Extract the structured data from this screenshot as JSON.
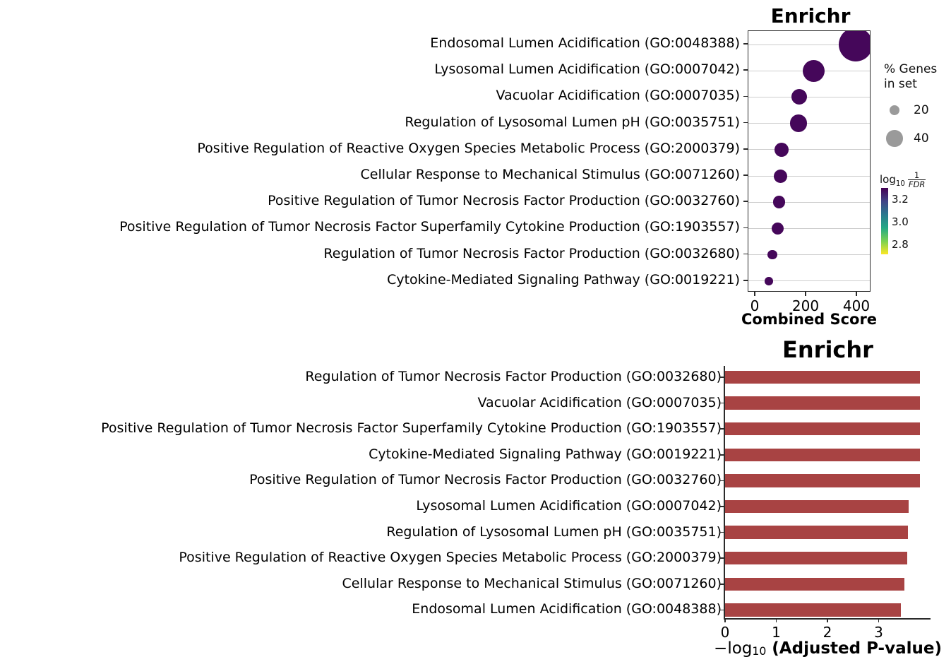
{
  "chart_data": [
    {
      "type": "scatter",
      "title": "Enrichr",
      "xlabel": "Combined Score",
      "x_ticks": [
        0,
        200,
        400
      ],
      "xlim": [
        -28,
        455
      ],
      "grid": "horizontal",
      "legend_position": "right",
      "point_color": "#45075A",
      "categories": [
        "Endosomal Lumen Acidification (GO:0048388)",
        "Lysosomal Lumen Acidification (GO:0007042)",
        "Vacuolar Acidification (GO:0007035)",
        "Regulation of Lysosomal Lumen pH (GO:0035751)",
        "Positive Regulation of Reactive Oxygen Species Metabolic Process (GO:2000379)",
        "Cellular Response to Mechanical Stimulus (GO:0071260)",
        "Positive Regulation of Tumor Necrosis Factor Production (GO:0032760)",
        "Positive Regulation of Tumor Necrosis Factor Superfamily Cytokine Production (GO:1903557)",
        "Regulation of Tumor Necrosis Factor Production (GO:0032680)",
        "Cytokine-Mediated Signaling Pathway (GO:0019221)"
      ],
      "combined_scores": [
        395,
        230,
        172,
        170,
        104,
        99,
        93,
        87,
        67,
        52
      ],
      "bubble_radius_px": [
        24,
        15.7,
        11,
        12.2,
        10,
        9.5,
        8.8,
        8.7,
        6.7,
        5.8
      ],
      "size_legend": {
        "title_line1": "% Genes",
        "title_line2": "in set",
        "swatch_color": "#9A9A9A",
        "entries": [
          {
            "label": "20",
            "radius_px": 7.3
          },
          {
            "label": "40",
            "radius_px": 11.7
          }
        ]
      },
      "color_legend": {
        "label_prefix": "log",
        "label_sub": "10",
        "frac_numerator": "1",
        "frac_denominator": "FDR",
        "tick_labels": [
          "3.2",
          "3.0",
          "2.8"
        ],
        "range_top": 3.3,
        "range_bottom": 2.71,
        "gradient": [
          "#440154",
          "#414487",
          "#2A788E",
          "#22A884",
          "#7AD151",
          "#FDE725"
        ]
      }
    },
    {
      "type": "bar",
      "title": "Enrichr",
      "xlabel_prefix": "−log",
      "xlabel_sub": "10",
      "xlabel_bold": " (Adjusted P-value)",
      "x_ticks": [
        0,
        1,
        2,
        3
      ],
      "xlim": [
        0,
        4.0
      ],
      "grid": "off",
      "bar_color": "#A84343",
      "categories": [
        "Regulation of Tumor Necrosis Factor Production (GO:0032680)",
        "Vacuolar Acidification (GO:0007035)",
        "Positive Regulation of Tumor Necrosis Factor Superfamily Cytokine Production (GO:1903557)",
        "Cytokine-Mediated Signaling Pathway (GO:0019221)",
        "Positive Regulation of Tumor Necrosis Factor Production (GO:0032760)",
        "Lysosomal Lumen Acidification (GO:0007042)",
        "Regulation of Lysosomal Lumen pH (GO:0035751)",
        "Positive Regulation of Reactive Oxygen Species Metabolic Process (GO:2000379)",
        "Cellular Response to Mechanical Stimulus (GO:0071260)",
        "Endosomal Lumen Acidification (GO:0048388)"
      ],
      "values": [
        3.8,
        3.8,
        3.8,
        3.8,
        3.8,
        3.58,
        3.57,
        3.56,
        3.51,
        3.44
      ]
    }
  ]
}
